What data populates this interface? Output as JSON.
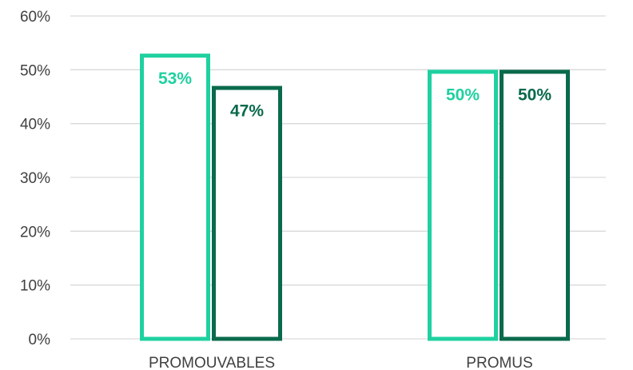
{
  "chart_data": {
    "type": "bar",
    "categories": [
      "PROMOUVABLES",
      "PROMUS"
    ],
    "series": [
      {
        "values": [
          53,
          50
        ],
        "labels": [
          "53%",
          "50%"
        ],
        "color": "#1fd1a0"
      },
      {
        "values": [
          47,
          50
        ],
        "labels": [
          "47%",
          "50%"
        ],
        "color": "#0a6a4c"
      }
    ],
    "ylim": [
      0,
      60
    ],
    "yticks": [
      0,
      10,
      20,
      30,
      40,
      50,
      60
    ],
    "ytick_labels": [
      "0%",
      "10%",
      "20%",
      "30%",
      "40%",
      "50%",
      "60%"
    ],
    "grid": true,
    "bar_style": "outline"
  }
}
